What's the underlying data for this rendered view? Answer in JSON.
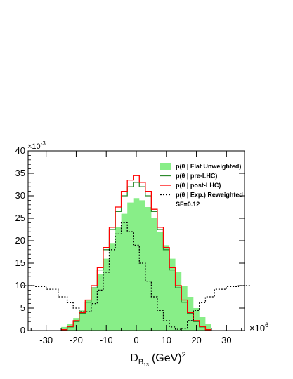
{
  "chart_data": {
    "type": "area",
    "xlabel_main": "D",
    "xlabel_sub": "B",
    "xlabel_subsub": "13",
    "xlabel_unit": "(GeV)",
    "xlabel_power": "2",
    "x_multiplier_base": "×10",
    "x_multiplier_exp": "6",
    "y_multiplier_base": "×10",
    "y_multiplier_exp": "-3",
    "xlim": [
      -36,
      36
    ],
    "ylim": [
      0,
      40
    ],
    "x_ticks": [
      -30,
      -20,
      -10,
      0,
      10,
      20,
      30
    ],
    "y_ticks": [
      0,
      5,
      10,
      15,
      20,
      25,
      30,
      35,
      40
    ],
    "annotation": "SF=0.12",
    "legend_position": "top-right",
    "series": [
      {
        "name": "p(θ | Flat Unweighted)",
        "style": "filled",
        "color": "#88ee88",
        "x": [
          -24,
          -22,
          -20,
          -18,
          -16,
          -14,
          -12,
          -10,
          -8,
          -6,
          -4,
          -2,
          0,
          2,
          4,
          6,
          8,
          10,
          12,
          14,
          16,
          18,
          20,
          22,
          24
        ],
        "values": [
          0.8,
          1.5,
          2.8,
          4.5,
          6.8,
          9.5,
          12.5,
          16,
          19.5,
          23,
          26,
          28.5,
          29.5,
          29,
          27.5,
          25,
          22,
          19,
          16,
          13,
          10,
          7.5,
          5,
          3,
          1.5
        ]
      },
      {
        "name": "p(θ | pre-LHC)",
        "style": "line",
        "color": "#2e8b2e",
        "x": [
          -24,
          -22,
          -20,
          -18,
          -16,
          -14,
          -12,
          -10,
          -8,
          -6,
          -4,
          -2,
          0,
          2,
          4,
          6,
          8,
          10,
          12,
          14,
          16,
          18,
          20,
          22,
          24
        ],
        "values": [
          0.2,
          0.8,
          2.0,
          3.8,
          6.3,
          9.5,
          13.5,
          18,
          22.5,
          26.5,
          30,
          32,
          33,
          32,
          30,
          26.5,
          22.5,
          18,
          13.5,
          9.5,
          6.3,
          3.8,
          2.0,
          0.8,
          0.2
        ]
      },
      {
        "name": "p(θ | post-LHC)",
        "style": "line",
        "color": "#ff0000",
        "x": [
          -24,
          -22,
          -20,
          -18,
          -16,
          -14,
          -12,
          -10,
          -8,
          -6,
          -4,
          -2,
          0,
          2,
          4,
          6,
          8,
          10,
          12,
          14,
          16,
          18,
          20,
          22,
          24
        ],
        "values": [
          0.2,
          0.9,
          2.2,
          4.0,
          6.8,
          10,
          14,
          18.5,
          23,
          27.5,
          31,
          33.5,
          34.5,
          33,
          31,
          27,
          23,
          18.5,
          14,
          10,
          6.8,
          4.0,
          2.2,
          0.9,
          0.2
        ]
      },
      {
        "name": "p(θ | Exp.) Reweighted",
        "style": "dashed",
        "color": "#000000",
        "x": [
          -36,
          -32,
          -28,
          -24,
          -22,
          -20,
          -18,
          -16,
          -14,
          -12,
          -10,
          -8,
          -6,
          -4,
          -2,
          0,
          2,
          4,
          6,
          8,
          10,
          12,
          14,
          16,
          18,
          20,
          22,
          24,
          28,
          32,
          36
        ],
        "values": [
          10,
          9.8,
          9.2,
          7.5,
          6.2,
          5.0,
          4.2,
          4.2,
          6.0,
          9.0,
          13,
          18,
          21.5,
          24,
          22,
          19,
          15,
          11,
          7.5,
          4.5,
          2.2,
          0.8,
          0.3,
          0.5,
          2.2,
          4.5,
          6.2,
          7.5,
          9.2,
          9.8,
          10
        ]
      }
    ]
  }
}
